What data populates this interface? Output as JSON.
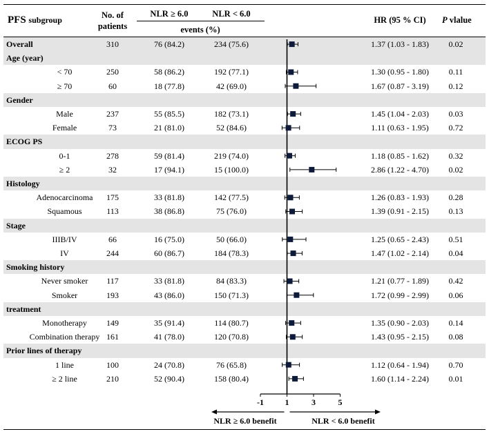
{
  "header": {
    "title": "PFS",
    "title_suffix": "subgroup",
    "patients": [
      "No. of",
      "patients"
    ],
    "nlr_high": "NLR ≥ 6.0",
    "nlr_low": "NLR < 6.0",
    "events": "events (%)",
    "hr": "HR (95 % CI)",
    "p": "P",
    "p_suffix": "vlalue"
  },
  "rows": [
    {
      "type": "data",
      "label": "Overall",
      "bold": true,
      "band": true,
      "n": "310",
      "high": "76 (84.2)",
      "low": "234 (75.6)",
      "hr_text": "1.37 (1.03 - 1.83)",
      "p": "0.02"
    },
    {
      "type": "section",
      "label": "Age (year)",
      "band": true
    },
    {
      "type": "data",
      "label": "< 70",
      "n": "250",
      "high": "58 (86.2)",
      "low": "192 (77.1)",
      "hr_text": "1.30 (0.95 - 1.80)",
      "p": "0.11"
    },
    {
      "type": "data",
      "label": "≥ 70",
      "n": "60",
      "high": "18 (77.8)",
      "low": "42 (69.0)",
      "hr_text": "1.67 (0.87 - 3.19)",
      "p": "0.12"
    },
    {
      "type": "section",
      "label": "Gender",
      "band": true
    },
    {
      "type": "data",
      "label": "Male",
      "n": "237",
      "high": "55 (85.5)",
      "low": "182 (73.1)",
      "hr_text": "1.45 (1.04 - 2.03)",
      "p": "0.03"
    },
    {
      "type": "data",
      "label": "Female",
      "n": "73",
      "high": "21 (81.0)",
      "low": "52 (84.6)",
      "hr_text": "1.11 (0.63 - 1.95)",
      "p": "0.72"
    },
    {
      "type": "section",
      "label": "ECOG PS",
      "band": true
    },
    {
      "type": "data",
      "label": "0-1",
      "n": "278",
      "high": "59 (81.4)",
      "low": "219 (74.0)",
      "hr_text": "1.18 (0.85 - 1.62)",
      "p": "0.32"
    },
    {
      "type": "data",
      "label": "≥ 2",
      "n": "32",
      "high": "17 (94.1)",
      "low": "15 (100.0)",
      "hr_text": "2.86 (1.22 - 4.70)",
      "p": "0.02"
    },
    {
      "type": "section",
      "label": "Histology",
      "band": true
    },
    {
      "type": "data",
      "label": "Adenocarcinoma",
      "n": "175",
      "high": "33 (81.8)",
      "low": "142 (77.5)",
      "hr_text": "1.26 (0.83 - 1.93)",
      "p": "0.28"
    },
    {
      "type": "data",
      "label": "Squamous",
      "n": "113",
      "high": "38 (86.8)",
      "low": "75 (76.0)",
      "hr_text": "1.39 (0.91 - 2.15)",
      "p": "0.13"
    },
    {
      "type": "section",
      "label": "Stage",
      "band": true
    },
    {
      "type": "data",
      "label": "IIIB/IV",
      "n": "66",
      "high": "16 (75.0)",
      "low": "50 (66.0)",
      "hr_text": "1.25 (0.65 - 2.43)",
      "p": "0.51"
    },
    {
      "type": "data",
      "label": "IV",
      "n": "244",
      "high": "60 (86.7)",
      "low": "184 (78.3)",
      "hr_text": "1.47 (1.02 - 2.14)",
      "p": "0.04"
    },
    {
      "type": "section",
      "label": "Smoking history",
      "band": true
    },
    {
      "type": "data",
      "label": "Never smoker",
      "n": "117",
      "high": "33 (81.8)",
      "low": "84 (83.3)",
      "hr_text": "1.21 (0.77 - 1.89)",
      "p": "0.42"
    },
    {
      "type": "data",
      "label": "Smoker",
      "n": "193",
      "high": "43 (86.0)",
      "low": "150 (71.3)",
      "hr_text": "1.72 (0.99 - 2.99)",
      "p": "0.06"
    },
    {
      "type": "section",
      "label": "treatment",
      "band": true
    },
    {
      "type": "data",
      "label": "Monotherapy",
      "n": "149",
      "high": "35 (91.4)",
      "low": "114 (80.7)",
      "hr_text": "1.35 (0.90 - 2.03)",
      "p": "0.14"
    },
    {
      "type": "data",
      "label": "Combination therapy",
      "n": "161",
      "high": "41 (78.0)",
      "low": "120 (70.8)",
      "hr_text": "1.43 (0.95 - 2.15)",
      "p": "0.08"
    },
    {
      "type": "section",
      "label": "Prior lines of therapy",
      "band": true
    },
    {
      "type": "data",
      "label": "1 line",
      "n": "100",
      "high": "24 (70.8)",
      "low": "76 (65.8)",
      "hr_text": "1.12 (0.64 - 1.94)",
      "p": "0.70"
    },
    {
      "type": "data",
      "label": "≥ 2 line",
      "n": "210",
      "high": "52 (90.4)",
      "low": "158 (80.4)",
      "hr_text": "1.60 (1.14 - 2.24)",
      "p": "0.01"
    }
  ],
  "chart_data": {
    "type": "scatter",
    "subtype": "forest",
    "title": "PFS subgroup",
    "xlabel_left": "NLR ≥ 6.0 benefit",
    "xlabel_right": "NLR < 6.0 benefit",
    "xlim": [
      -1,
      5
    ],
    "reference_line": 1,
    "ticks": [
      "-1",
      "1",
      "3",
      "5"
    ],
    "categories": [
      "Overall",
      "< 70",
      "≥ 70",
      "Male",
      "Female",
      "0-1",
      "≥ 2",
      "Adenocarcinoma",
      "Squamous",
      "IIIB/IV",
      "IV",
      "Never smoker",
      "Smoker",
      "Monotherapy",
      "Combination therapy",
      "1 line",
      "≥ 2 line"
    ],
    "hr": [
      1.37,
      1.3,
      1.67,
      1.45,
      1.11,
      1.18,
      2.86,
      1.26,
      1.39,
      1.25,
      1.47,
      1.21,
      1.72,
      1.35,
      1.43,
      1.12,
      1.6
    ],
    "lower": [
      1.03,
      0.95,
      0.87,
      1.04,
      0.63,
      0.85,
      1.22,
      0.83,
      0.91,
      0.65,
      1.02,
      0.77,
      0.99,
      0.9,
      0.95,
      0.64,
      1.14
    ],
    "upper": [
      1.83,
      1.8,
      3.19,
      2.03,
      1.95,
      1.62,
      4.7,
      1.93,
      2.15,
      2.43,
      2.14,
      1.89,
      2.99,
      2.03,
      2.15,
      1.94,
      2.24
    ]
  }
}
